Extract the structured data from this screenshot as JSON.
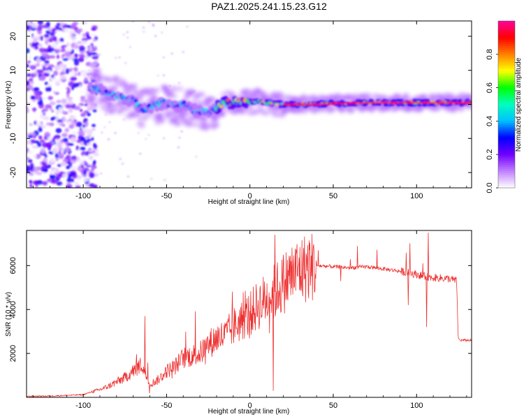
{
  "title": "PAZ1.2025.241.15.23.G12",
  "chart_data": [
    {
      "type": "heatmap",
      "xlabel": "Height of straight line (km)",
      "ylabel": "Frequency (Hz)",
      "xlim": [
        -134,
        133
      ],
      "ylim": [
        -24.5,
        24.5
      ],
      "xticks": [
        -100,
        -50,
        0,
        50,
        100
      ],
      "yticks": [
        -20,
        -10,
        0,
        10,
        20
      ],
      "colorbar": {
        "label": "Normalized spectral amplitude",
        "ticks": [
          "0.0",
          "0.2",
          "0.4",
          "0.6",
          "0.8"
        ],
        "range": [
          0,
          1
        ],
        "colors": [
          "#ffffff",
          "#c080ff",
          "#7000ff",
          "#0000ff",
          "#00c0ff",
          "#00ffc0",
          "#00ff00",
          "#ffff00",
          "#ff8000",
          "#ff0000",
          "#ff00a0"
        ]
      },
      "ridge_frequency_hz": {
        "x": [
          -95,
          -90,
          -85,
          -80,
          -75,
          -70,
          -65,
          -60,
          -55,
          -50,
          -45,
          -40,
          -35,
          -30,
          -25,
          -20,
          -15,
          -10,
          -5,
          0,
          5,
          10,
          20,
          30,
          50,
          75,
          100,
          133
        ],
        "y": [
          5,
          4.5,
          3,
          2.5,
          1.5,
          1,
          -1.5,
          -1,
          0,
          0.5,
          -0.5,
          0,
          -1.5,
          -2,
          -2,
          -1,
          0.5,
          0.5,
          1,
          0.5,
          1,
          0.5,
          0,
          0,
          0.3,
          0.5,
          0.5,
          0.5
        ]
      },
      "noise_region_x": [
        -134,
        -92
      ]
    },
    {
      "type": "line",
      "xlabel": "Height of straight line (km)",
      "ylabel": "SNR (10 * v/v)",
      "xlim": [
        -134,
        133
      ],
      "ylim": [
        0,
        7600
      ],
      "xticks": [
        -100,
        -50,
        0,
        50,
        100
      ],
      "yticks": [
        2000,
        4000,
        6000
      ],
      "color": "#ee3030",
      "series": [
        {
          "x": [
            -134,
            -120,
            -100,
            -95,
            -90,
            -85,
            -80,
            -75,
            -70,
            -65,
            -60,
            -55,
            -50,
            -45,
            -40,
            -35,
            -30,
            -25,
            -20,
            -15,
            -10,
            -5,
            0,
            5,
            10,
            15,
            20,
            25,
            30,
            35,
            40,
            50,
            60,
            70,
            80,
            90,
            100,
            105,
            110,
            120,
            124,
            125,
            126,
            133
          ],
          "y": [
            50,
            60,
            120,
            250,
            350,
            500,
            700,
            900,
            1200,
            1500,
            600,
            800,
            1200,
            1400,
            1800,
            1900,
            2000,
            2400,
            2700,
            2800,
            3200,
            3500,
            3800,
            4200,
            4500,
            4800,
            5200,
            5600,
            5800,
            5950,
            6000,
            5950,
            5900,
            5950,
            5850,
            5750,
            5600,
            5500,
            5450,
            5400,
            5300,
            2700,
            2600,
            2600
          ]
        }
      ]
    }
  ]
}
